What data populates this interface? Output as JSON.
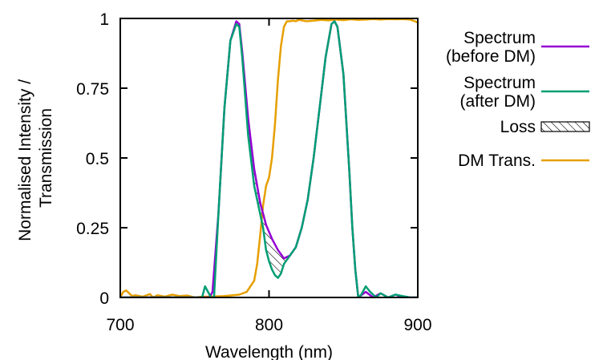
{
  "chart_data": {
    "type": "line",
    "title": "",
    "xlabel": "Wavelength (nm)",
    "ylabel_lines": [
      "Normalised Intensity /",
      "Transmission"
    ],
    "xlim": [
      700,
      900
    ],
    "ylim": [
      0,
      1
    ],
    "x_ticks": [
      {
        "value": 700,
        "label": "700"
      },
      {
        "value": 800,
        "label": "800"
      },
      {
        "value": 900,
        "label": "900"
      }
    ],
    "y_ticks": [
      {
        "value": 0,
        "label": "0"
      },
      {
        "value": 0.25,
        "label": "0.25"
      },
      {
        "value": 0.5,
        "label": "0.5"
      },
      {
        "value": 0.75,
        "label": "0.75"
      },
      {
        "value": 1,
        "label": "1"
      }
    ],
    "grid": false,
    "legend_placement": "outside-right",
    "series": [
      {
        "name": "Spectrum (before DM)",
        "legend_lines": [
          "Spectrum",
          "(before DM)"
        ],
        "color": "#9400d3",
        "x": [
          700,
          760,
          762,
          766,
          770,
          774,
          778,
          780,
          782,
          786,
          790,
          794,
          798,
          802,
          806,
          810,
          814,
          818,
          822,
          826,
          830,
          834,
          838,
          842,
          844,
          846,
          850,
          854,
          856,
          858,
          860,
          865,
          870,
          875,
          880,
          885,
          890,
          900
        ],
        "y": [
          0,
          0,
          0.02,
          0.3,
          0.68,
          0.92,
          0.99,
          0.98,
          0.88,
          0.64,
          0.46,
          0.34,
          0.26,
          0.21,
          0.17,
          0.14,
          0.15,
          0.18,
          0.25,
          0.35,
          0.5,
          0.68,
          0.86,
          0.98,
          0.99,
          0.97,
          0.8,
          0.45,
          0.25,
          0.1,
          0,
          0.02,
          0,
          0.015,
          0,
          0.01,
          0,
          0
        ]
      },
      {
        "name": "Spectrum (after DM)",
        "legend_lines": [
          "Spectrum",
          "(after DM)"
        ],
        "color": "#009e73",
        "x": [
          700,
          755,
          757,
          759,
          761,
          763,
          766,
          770,
          774,
          778,
          780,
          782,
          786,
          790,
          794,
          796,
          798,
          800,
          802,
          804,
          806,
          808,
          810,
          814,
          818,
          822,
          826,
          830,
          834,
          838,
          842,
          844,
          846,
          850,
          854,
          856,
          858,
          860,
          862,
          865,
          868,
          872,
          875,
          880,
          885,
          890,
          895,
          900
        ],
        "y": [
          0,
          0,
          0.04,
          0.02,
          0,
          0,
          0.3,
          0.68,
          0.92,
          0.98,
          0.97,
          0.86,
          0.58,
          0.4,
          0.3,
          0.25,
          0.17,
          0.13,
          0.1,
          0.08,
          0.07,
          0.085,
          0.12,
          0.15,
          0.18,
          0.25,
          0.35,
          0.5,
          0.68,
          0.86,
          0.98,
          0.99,
          0.97,
          0.8,
          0.45,
          0.25,
          0.1,
          0,
          0.01,
          0.04,
          0.02,
          0,
          0.015,
          0,
          0.01,
          0.005,
          0,
          0
        ]
      },
      {
        "name": "Loss",
        "legend_lines": [
          "Loss"
        ],
        "color": "#000000",
        "style": "hatched-area"
      },
      {
        "name": "DM Trans.",
        "legend_lines": [
          "DM Trans."
        ],
        "color": "#e69f00",
        "x": [
          700,
          702,
          704,
          706,
          708,
          710,
          715,
          720,
          722,
          725,
          730,
          735,
          740,
          745,
          750,
          755,
          760,
          770,
          780,
          785,
          790,
          792,
          794,
          796,
          798,
          800,
          802,
          804,
          806,
          808,
          810,
          812,
          814,
          816,
          818,
          820,
          825,
          830,
          835,
          840,
          845,
          850,
          855,
          860,
          865,
          870,
          875,
          880,
          885,
          890,
          895,
          898,
          900
        ],
        "y": [
          0,
          0.02,
          0.025,
          0.015,
          0.005,
          0.008,
          0.003,
          0.012,
          0,
          0.008,
          0.003,
          0.01,
          0.005,
          0.007,
          0,
          0.003,
          0.003,
          0.005,
          0.01,
          0.02,
          0.06,
          0.12,
          0.22,
          0.33,
          0.4,
          0.43,
          0.5,
          0.62,
          0.78,
          0.9,
          0.97,
          0.99,
          0.99,
          0.992,
          0.99,
          0.995,
          0.99,
          0.992,
          0.995,
          0.993,
          0.996,
          0.994,
          0.997,
          0.995,
          0.996,
          0.998,
          0.996,
          0.998,
          0.997,
          0.998,
          0.996,
          0.99,
          0.985
        ]
      }
    ]
  }
}
